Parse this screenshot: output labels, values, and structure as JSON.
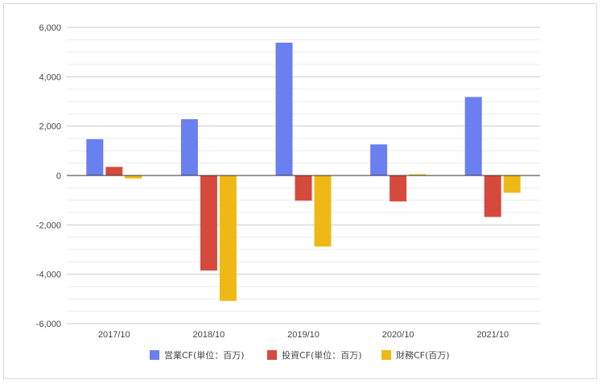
{
  "chart_data": {
    "type": "bar",
    "categories": [
      "2017/10",
      "2018/10",
      "2019/10",
      "2020/10",
      "2021/10"
    ],
    "series": [
      {
        "name": "営業CF(単位：百万)",
        "color": "#6a7ff0",
        "values": [
          1470,
          2280,
          5380,
          1260,
          3180
        ]
      },
      {
        "name": "投資CF(単位：百万)",
        "color": "#d64a3e",
        "values": [
          350,
          -3850,
          -1020,
          -1050,
          -1680
        ]
      },
      {
        "name": "財務CF(百万)",
        "color": "#efb915",
        "values": [
          -120,
          -5080,
          -2880,
          40,
          -700
        ]
      }
    ],
    "y_ticks": [
      "6,000",
      "4,000",
      "2,000",
      "0",
      "-2,000",
      "-4,000",
      "-6,000"
    ],
    "y_tick_values": [
      6000,
      4000,
      2000,
      0,
      -2000,
      -4000,
      -6000
    ],
    "ylim": [
      -6000,
      6000
    ],
    "grid": true,
    "legend_position": "bottom",
    "title": "",
    "xlabel": "",
    "ylabel": ""
  }
}
